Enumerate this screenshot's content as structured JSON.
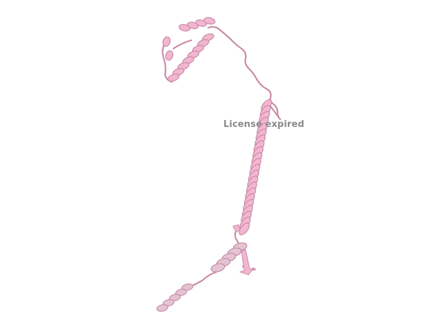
{
  "viewer": {
    "watermark": "License expired",
    "background_color": "#ffffff",
    "structure_color": "#f2b6cf",
    "structure_shadow_color": "#c98aa6",
    "structure_dim_color": "#e4c4d3",
    "representation": "cartoon-icon"
  }
}
